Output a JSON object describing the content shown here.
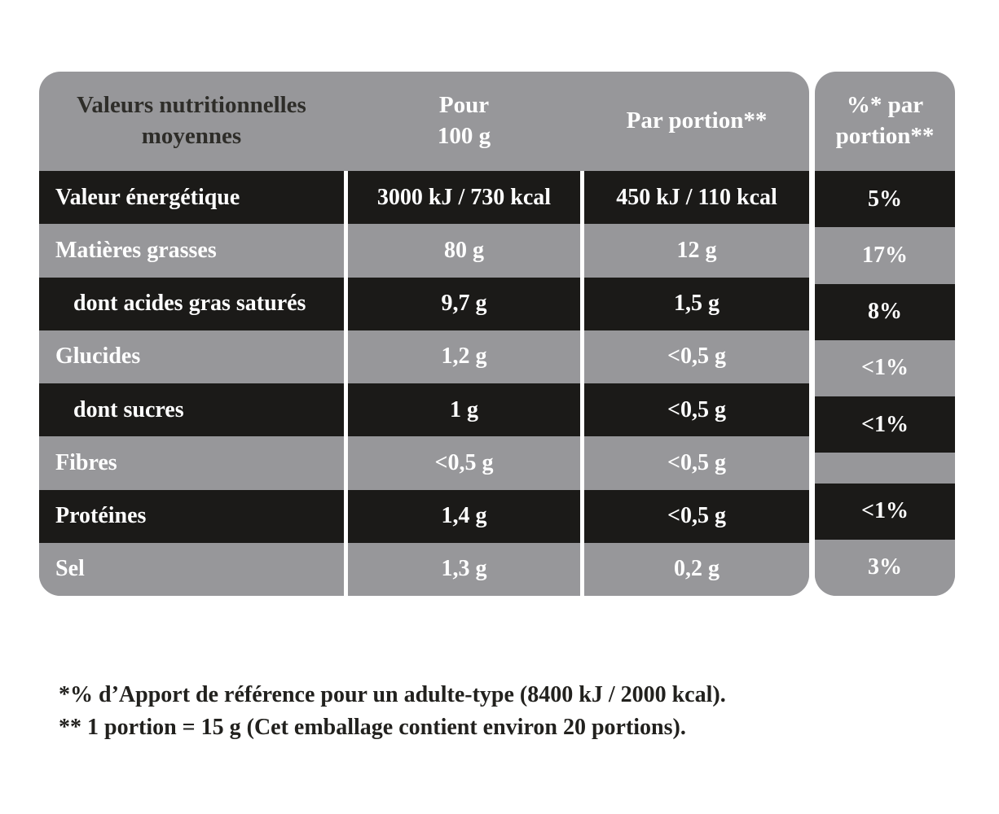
{
  "colors": {
    "row_black": "#1B1A18",
    "row_gray": "#97979A",
    "separator_white": "#FFFFFF",
    "header_title_text": "#2E2D29",
    "value_text": "#FFFFFF",
    "footnote_text": "#22211E",
    "page_background": "#FFFFFF"
  },
  "table": {
    "header": {
      "title_line1": "Valeurs nutritionnelles",
      "title_line2": "moyennes",
      "per100_line1": "Pour",
      "per100_line2": "100 g",
      "portion": "Par portion**",
      "pct_line1": "%* par",
      "pct_line2": "portion**"
    },
    "rows": [
      {
        "label": "Valeur énergétique",
        "indent": false,
        "per100": "3000 kJ / 730 kcal",
        "portion": "450 kJ / 110 kcal",
        "pct": "5%"
      },
      {
        "label": "Matières grasses",
        "indent": false,
        "per100": "80 g",
        "portion": "12 g",
        "pct": "17%"
      },
      {
        "label": "dont acides gras saturés",
        "indent": true,
        "per100": "9,7 g",
        "portion": "1,5 g",
        "pct": "8%"
      },
      {
        "label": "Glucides",
        "indent": false,
        "per100": "1,2 g",
        "portion": "<0,5 g",
        "pct": "<1%"
      },
      {
        "label": "dont sucres",
        "indent": true,
        "per100": "1 g",
        "portion": "<0,5 g",
        "pct": "<1%"
      },
      {
        "label": "Fibres",
        "indent": false,
        "per100": "<0,5 g",
        "portion": "<0,5 g",
        "pct": ""
      },
      {
        "label": "Protéines",
        "indent": false,
        "per100": "1,4 g",
        "portion": "<0,5 g",
        "pct": "<1%"
      },
      {
        "label": "Sel",
        "indent": false,
        "per100": "1,3 g",
        "portion": "0,2 g",
        "pct": "3%"
      }
    ]
  },
  "footnotes": [
    "*% d’Apport de référence pour un adulte-type (8400 kJ / 2000 kcal).",
    "** 1 portion = 15 g (Cet emballage contient environ 20 portions)."
  ]
}
